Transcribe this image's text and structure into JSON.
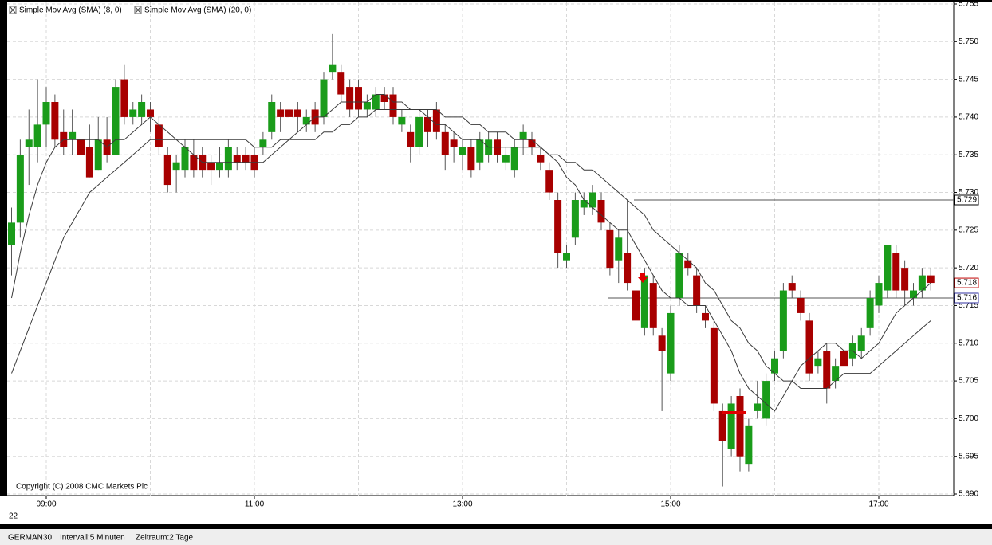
{
  "chart_data": {
    "type": "candlestick",
    "categories": [
      null,
      null,
      null,
      null,
      "09:00",
      null,
      null,
      null,
      null,
      null,
      null,
      null,
      null,
      null,
      null,
      null,
      null,
      null,
      null,
      null,
      null,
      null,
      null,
      null,
      null,
      null,
      null,
      null,
      "11:00",
      null,
      null,
      null,
      null,
      null,
      null,
      null,
      null,
      null,
      null,
      null,
      null,
      null,
      null,
      null,
      null,
      null,
      null,
      null,
      null,
      null,
      null,
      null,
      "13:00",
      null,
      null,
      null,
      null,
      null,
      null,
      null,
      null,
      null,
      null,
      null,
      null,
      null,
      null,
      null,
      null,
      null,
      null,
      null,
      null,
      null,
      null,
      null,
      "15:00",
      null,
      null,
      null,
      null,
      null,
      null,
      null,
      null,
      null,
      null,
      null,
      null,
      null,
      null,
      null,
      null,
      null,
      null,
      null,
      null,
      null,
      null,
      null,
      "17:00",
      null,
      null,
      null,
      null,
      null,
      null
    ],
    "date_label": "22",
    "open": [
      5.723,
      5.726,
      5.736,
      5.736,
      5.739,
      5.742,
      5.738,
      5.737,
      5.737,
      5.736,
      5.733,
      5.737,
      5.735,
      5.745,
      5.74,
      5.74,
      5.741,
      5.739,
      5.735,
      5.733,
      5.733,
      5.735,
      5.735,
      5.734,
      5.733,
      5.733,
      5.735,
      5.735,
      5.735,
      5.736,
      5.738,
      5.741,
      5.741,
      5.741,
      5.739,
      5.741,
      5.74,
      5.746,
      5.746,
      5.744,
      5.744,
      5.741,
      5.741,
      5.743,
      5.743,
      5.739,
      5.738,
      5.736,
      5.74,
      5.741,
      5.738,
      5.737,
      5.735,
      5.736,
      5.734,
      5.735,
      5.737,
      5.734,
      5.733,
      5.737,
      5.737,
      5.735,
      5.733,
      5.729,
      5.721,
      5.724,
      5.728,
      5.728,
      5.729,
      5.725,
      5.721,
      5.722,
      5.717,
      5.712,
      5.718,
      5.711,
      5.706,
      5.716,
      5.721,
      5.719,
      5.714,
      5.712,
      5.701,
      5.696,
      5.703,
      5.694,
      5.701,
      5.7,
      5.706,
      5.709,
      5.718,
      5.716,
      5.713,
      5.707,
      5.709,
      5.705,
      5.709,
      5.708,
      5.709,
      5.712,
      5.715,
      5.717,
      5.722,
      5.72,
      5.716,
      5.717,
      5.719
    ],
    "high": [
      5.728,
      5.737,
      5.741,
      5.745,
      5.744,
      5.743,
      5.741,
      5.741,
      5.739,
      5.739,
      5.74,
      5.74,
      5.745,
      5.747,
      5.742,
      5.743,
      5.742,
      5.74,
      5.736,
      5.735,
      5.737,
      5.737,
      5.736,
      5.735,
      5.736,
      5.737,
      5.736,
      5.736,
      5.736,
      5.738,
      5.743,
      5.742,
      5.742,
      5.742,
      5.741,
      5.742,
      5.746,
      5.751,
      5.747,
      5.745,
      5.745,
      5.743,
      5.744,
      5.744,
      5.744,
      5.741,
      5.739,
      5.741,
      5.741,
      5.742,
      5.739,
      5.738,
      5.737,
      5.737,
      5.738,
      5.738,
      5.738,
      5.736,
      5.737,
      5.739,
      5.738,
      5.736,
      5.734,
      5.73,
      5.723,
      5.73,
      5.73,
      5.731,
      5.73,
      5.726,
      5.725,
      5.729,
      5.718,
      5.72,
      5.719,
      5.712,
      5.715,
      5.723,
      5.722,
      5.72,
      5.715,
      5.713,
      5.702,
      5.703,
      5.704,
      5.7,
      5.705,
      5.706,
      5.709,
      5.718,
      5.719,
      5.717,
      5.714,
      5.709,
      5.71,
      5.708,
      5.71,
      5.711,
      5.712,
      5.717,
      5.719,
      5.723,
      5.723,
      5.721,
      5.718,
      5.72,
      5.72
    ],
    "low": [
      5.719,
      5.724,
      5.731,
      5.734,
      5.736,
      5.736,
      5.735,
      5.735,
      5.734,
      5.732,
      5.733,
      5.734,
      5.735,
      5.739,
      5.739,
      5.739,
      5.738,
      5.735,
      5.73,
      5.73,
      5.732,
      5.732,
      5.732,
      5.731,
      5.732,
      5.732,
      5.733,
      5.733,
      5.732,
      5.735,
      5.737,
      5.738,
      5.739,
      5.738,
      5.738,
      5.738,
      5.739,
      5.745,
      5.742,
      5.74,
      5.74,
      5.74,
      5.74,
      5.741,
      5.739,
      5.738,
      5.734,
      5.735,
      5.736,
      5.737,
      5.733,
      5.734,
      5.733,
      5.732,
      5.733,
      5.734,
      5.734,
      5.733,
      5.732,
      5.735,
      5.735,
      5.733,
      5.729,
      5.72,
      5.72,
      5.723,
      5.727,
      5.727,
      5.725,
      5.719,
      5.718,
      5.717,
      5.71,
      5.711,
      5.711,
      5.701,
      5.705,
      5.715,
      5.719,
      5.714,
      5.712,
      5.701,
      5.691,
      5.695,
      5.693,
      5.693,
      5.7,
      5.699,
      5.705,
      5.708,
      5.716,
      5.713,
      5.705,
      5.706,
      5.702,
      5.704,
      5.706,
      5.707,
      5.708,
      5.711,
      5.714,
      5.716,
      5.716,
      5.715,
      5.715,
      5.716,
      5.717
    ],
    "close": [
      5.726,
      5.735,
      5.737,
      5.739,
      5.742,
      5.737,
      5.736,
      5.738,
      5.735,
      5.732,
      5.737,
      5.735,
      5.744,
      5.74,
      5.741,
      5.742,
      5.74,
      5.736,
      5.731,
      5.734,
      5.736,
      5.733,
      5.733,
      5.733,
      5.734,
      5.736,
      5.734,
      5.734,
      5.733,
      5.737,
      5.742,
      5.74,
      5.74,
      5.74,
      5.74,
      5.739,
      5.745,
      5.747,
      5.743,
      5.741,
      5.741,
      5.742,
      5.743,
      5.742,
      5.74,
      5.74,
      5.736,
      5.74,
      5.738,
      5.738,
      5.735,
      5.736,
      5.736,
      5.733,
      5.737,
      5.737,
      5.735,
      5.735,
      5.736,
      5.738,
      5.736,
      5.734,
      5.73,
      5.722,
      5.722,
      5.729,
      5.729,
      5.73,
      5.726,
      5.72,
      5.724,
      5.718,
      5.713,
      5.719,
      5.712,
      5.709,
      5.714,
      5.722,
      5.72,
      5.715,
      5.713,
      5.702,
      5.697,
      5.702,
      5.695,
      5.699,
      5.702,
      5.705,
      5.708,
      5.717,
      5.717,
      5.714,
      5.706,
      5.708,
      5.704,
      5.707,
      5.707,
      5.71,
      5.711,
      5.716,
      5.718,
      5.723,
      5.717,
      5.717,
      5.717,
      5.719,
      5.718
    ],
    "up_color": "#1a9c1a",
    "down_color": "#a80000",
    "series": [
      {
        "name": "Simple Mov Avg (SMA) (8, 0)",
        "color": "#3a3a3a",
        "values": [
          5.716,
          5.722,
          5.727,
          5.731,
          5.734,
          5.736,
          5.737,
          5.737,
          5.737,
          5.737,
          5.737,
          5.736,
          5.737,
          5.737,
          5.738,
          5.739,
          5.74,
          5.739,
          5.738,
          5.737,
          5.736,
          5.735,
          5.734,
          5.734,
          5.734,
          5.734,
          5.734,
          5.734,
          5.734,
          5.734,
          5.735,
          5.736,
          5.737,
          5.738,
          5.739,
          5.74,
          5.74,
          5.741,
          5.742,
          5.742,
          5.742,
          5.742,
          5.743,
          5.743,
          5.742,
          5.742,
          5.741,
          5.741,
          5.74,
          5.739,
          5.739,
          5.738,
          5.737,
          5.737,
          5.737,
          5.736,
          5.736,
          5.736,
          5.736,
          5.736,
          5.736,
          5.736,
          5.735,
          5.734,
          5.732,
          5.731,
          5.729,
          5.728,
          5.727,
          5.726,
          5.725,
          5.725,
          5.723,
          5.721,
          5.719,
          5.717,
          5.716,
          5.716,
          5.715,
          5.715,
          5.715,
          5.713,
          5.711,
          5.709,
          5.706,
          5.704,
          5.703,
          5.702,
          5.701,
          5.703,
          5.705,
          5.707,
          5.708,
          5.709,
          5.71,
          5.71,
          5.709,
          5.709,
          5.708,
          5.709,
          5.71,
          5.712,
          5.714,
          5.715,
          5.716,
          5.717,
          5.718
        ]
      },
      {
        "name": "Simple Mov Avg (SMA) (20, 0)",
        "color": "#3a3a3a",
        "values": [
          5.706,
          5.709,
          5.712,
          5.715,
          5.718,
          5.721,
          5.724,
          5.726,
          5.728,
          5.73,
          5.731,
          5.732,
          5.733,
          5.734,
          5.735,
          5.736,
          5.737,
          5.737,
          5.737,
          5.737,
          5.737,
          5.737,
          5.737,
          5.737,
          5.737,
          5.737,
          5.737,
          5.737,
          5.736,
          5.736,
          5.736,
          5.737,
          5.737,
          5.737,
          5.737,
          5.737,
          5.738,
          5.738,
          5.739,
          5.739,
          5.74,
          5.74,
          5.741,
          5.741,
          5.741,
          5.741,
          5.741,
          5.741,
          5.741,
          5.741,
          5.74,
          5.74,
          5.74,
          5.739,
          5.739,
          5.738,
          5.738,
          5.738,
          5.737,
          5.737,
          5.737,
          5.736,
          5.735,
          5.735,
          5.734,
          5.734,
          5.733,
          5.733,
          5.732,
          5.731,
          5.73,
          5.729,
          5.728,
          5.727,
          5.725,
          5.724,
          5.723,
          5.722,
          5.721,
          5.72,
          5.718,
          5.717,
          5.715,
          5.713,
          5.712,
          5.71,
          5.709,
          5.707,
          5.706,
          5.705,
          5.705,
          5.704,
          5.704,
          5.704,
          5.704,
          5.705,
          5.706,
          5.706,
          5.706,
          5.706,
          5.707,
          5.708,
          5.709,
          5.71,
          5.711,
          5.712,
          5.713
        ]
      }
    ],
    "ylim": [
      5.69,
      5.755
    ],
    "yticks": [
      {
        "value": 5.69,
        "label": "5.690"
      },
      5.695,
      {
        "value": 5.7,
        "label": "5.700"
      },
      5.705,
      {
        "value": 5.71,
        "label": "5.710"
      },
      5.715,
      {
        "value": 5.72,
        "label": "5.720"
      },
      5.725,
      {
        "value": 5.73,
        "label": "5.730"
      },
      5.735,
      {
        "value": 5.74,
        "label": "5.740"
      },
      5.745,
      {
        "value": 5.75,
        "label": "5.750"
      },
      5.755
    ],
    "grid": true,
    "reference_lines": [
      5.729,
      5.716
    ],
    "copyright": "Copyright (C) 2008 CMC Markets Plc"
  },
  "footer": {
    "instrument": "GERMAN30",
    "interval": "Intervall:5 Minuten",
    "period": "Zeitraum:2 Tage"
  }
}
